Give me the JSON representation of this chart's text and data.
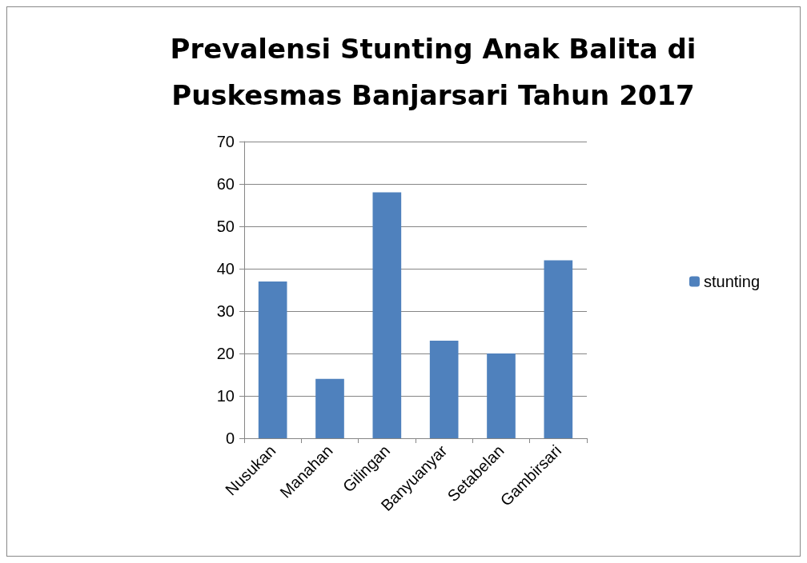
{
  "chart_data": {
    "type": "bar",
    "title": "Prevalensi Stunting Anak Balita di\nPuskesmas Banjarsari Tahun 2017",
    "categories": [
      "Nusukan",
      "Manahan",
      "Gilingan",
      "Banyuanyar",
      "Setabelan",
      "Gambirsari"
    ],
    "series": [
      {
        "name": "stunting",
        "color": "#4f81bd",
        "values": [
          37,
          14,
          58,
          23,
          20,
          42
        ]
      }
    ],
    "ylim": [
      0,
      70
    ],
    "yticks": [
      0,
      10,
      20,
      30,
      40,
      50,
      60,
      70
    ],
    "grid": "y",
    "legend": "right"
  }
}
